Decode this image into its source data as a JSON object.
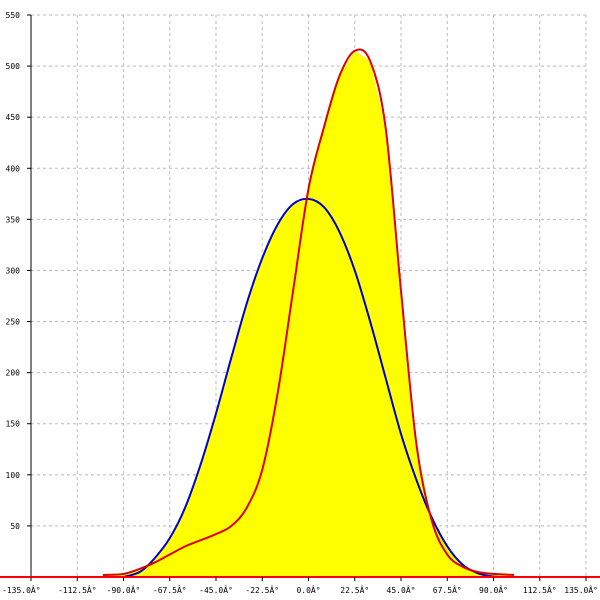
{
  "chart_data": {
    "type": "area",
    "title": "",
    "xlabel": "",
    "ylabel": "",
    "xlim": [
      -135,
      135
    ],
    "ylim": [
      0,
      550
    ],
    "grid": true,
    "x_ticks": [
      -135,
      -112.5,
      -90,
      -67.5,
      -45,
      -22.5,
      0,
      22.5,
      45,
      67.5,
      90,
      112.5,
      135
    ],
    "x_tick_labels": [
      "-135.0Â°",
      "-112.5Â°",
      "-90.0Â°",
      "-67.5Â°",
      "-45.0Â°",
      "-22.5Â°",
      "0.0Â°",
      "22.5Â°",
      "45.0Â°",
      "67.5Â°",
      "90.0Â°",
      "112.5Â°",
      "135.0Â°"
    ],
    "y_ticks": [
      50,
      100,
      150,
      200,
      250,
      300,
      350,
      400,
      450,
      500,
      550
    ],
    "y_tick_labels": [
      "50",
      "100",
      "150",
      "200",
      "250",
      "300",
      "350",
      "400",
      "450",
      "500",
      "550"
    ],
    "fill_color": "#ffff00",
    "series": [
      {
        "color": "#0000cc",
        "x": [
          -90,
          -82,
          -75,
          -67.5,
          -60,
          -52.5,
          -45,
          -37.5,
          -30,
          -22.5,
          -15,
          -7.5,
          0,
          7.5,
          15,
          22.5,
          30,
          37.5,
          45,
          52.5,
          60,
          67.5,
          75,
          82,
          88,
          93
        ],
        "y": [
          0,
          5,
          18,
          38,
          68,
          110,
          160,
          215,
          268,
          312,
          345,
          365,
          370,
          362,
          338,
          300,
          250,
          195,
          140,
          95,
          58,
          30,
          12,
          4,
          1,
          0
        ]
      },
      {
        "color": "#dd0000",
        "x": [
          -100,
          -90,
          -82,
          -75,
          -67.5,
          -60,
          -52.5,
          -45,
          -37.5,
          -30,
          -22.5,
          -15,
          -7.5,
          0,
          7.5,
          15,
          22.5,
          30,
          37.5,
          45,
          52.5,
          60,
          67.5,
          75,
          82,
          90,
          100
        ],
        "y": [
          2,
          3,
          8,
          14,
          22,
          30,
          36,
          42,
          50,
          68,
          105,
          180,
          280,
          380,
          440,
          490,
          515,
          505,
          440,
          280,
          130,
          55,
          22,
          10,
          5,
          3,
          2
        ]
      }
    ]
  }
}
